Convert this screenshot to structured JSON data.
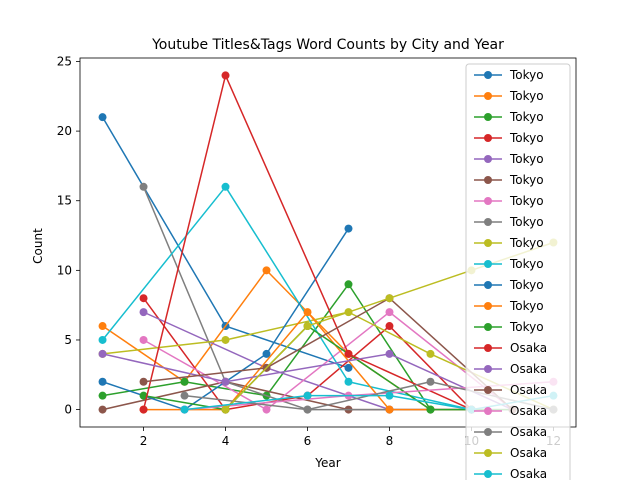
{
  "chart_data": {
    "type": "line",
    "title": "Youtube Titles&Tags Word Counts by City and Year",
    "xlabel": "Year",
    "ylabel": "Count",
    "xlim": [
      0.45,
      12.55
    ],
    "ylim": [
      -1.25,
      25.25
    ],
    "xticks": [
      2,
      4,
      6,
      8,
      10,
      12
    ],
    "yticks": [
      0,
      5,
      10,
      15,
      20,
      25
    ],
    "grid": false,
    "legend_position": "upper-right",
    "series": [
      {
        "name": "Tokyo",
        "color": "#1f77b4",
        "x": [
          1,
          4,
          7
        ],
        "y": [
          21,
          6,
          3
        ]
      },
      {
        "name": "Tokyo",
        "color": "#ff7f0e",
        "x": [
          1,
          3,
          5,
          7,
          9
        ],
        "y": [
          6,
          2,
          10,
          4,
          0
        ]
      },
      {
        "name": "Tokyo",
        "color": "#2ca02c",
        "x": [
          1,
          3,
          5,
          7,
          9
        ],
        "y": [
          1,
          2,
          1,
          9,
          0
        ]
      },
      {
        "name": "Tokyo",
        "color": "#d62728",
        "x": [
          2,
          4,
          6,
          8,
          10
        ],
        "y": [
          8,
          0,
          1,
          6,
          0
        ]
      },
      {
        "name": "Tokyo",
        "color": "#9467bd",
        "x": [
          2,
          5,
          8,
          11
        ],
        "y": [
          7,
          3,
          0,
          0
        ]
      },
      {
        "name": "Tokyo",
        "color": "#8c564b",
        "x": [
          1,
          4,
          7,
          10
        ],
        "y": [
          0,
          2,
          0,
          0
        ]
      },
      {
        "name": "Tokyo",
        "color": "#e377c2",
        "x": [
          2,
          5,
          8,
          11
        ],
        "y": [
          5,
          0,
          7,
          0
        ]
      },
      {
        "name": "Tokyo",
        "color": "#7f7f7f",
        "x": [
          2,
          4,
          6,
          8,
          10
        ],
        "y": [
          16,
          2,
          0,
          0,
          0
        ]
      },
      {
        "name": "Tokyo",
        "color": "#bcbd22",
        "x": [
          1,
          4,
          7,
          9,
          12
        ],
        "y": [
          4,
          5,
          7,
          4,
          0
        ]
      },
      {
        "name": "Tokyo",
        "color": "#17becf",
        "x": [
          1,
          4,
          7,
          10
        ],
        "y": [
          5,
          16,
          2,
          0
        ]
      },
      {
        "name": "Tokyo",
        "color": "#1f77b4",
        "x": [
          1,
          3,
          5,
          7
        ],
        "y": [
          2,
          0,
          4,
          13
        ]
      },
      {
        "name": "Tokyo",
        "color": "#ff7f0e",
        "x": [
          2,
          4,
          6,
          8,
          10
        ],
        "y": [
          0,
          0,
          7,
          0,
          0
        ]
      },
      {
        "name": "Tokyo",
        "color": "#2ca02c",
        "x": [
          2,
          4,
          6,
          9,
          11
        ],
        "y": [
          1,
          0,
          6,
          0,
          0
        ]
      },
      {
        "name": "Osaka",
        "color": "#d62728",
        "x": [
          2,
          4,
          7,
          10
        ],
        "y": [
          0,
          24,
          4,
          0
        ]
      },
      {
        "name": "Osaka",
        "color": "#9467bd",
        "x": [
          1,
          4,
          8,
          11
        ],
        "y": [
          4,
          2,
          4,
          0
        ]
      },
      {
        "name": "Osaka",
        "color": "#8c564b",
        "x": [
          2,
          5,
          8,
          11
        ],
        "y": [
          2,
          3,
          8,
          0
        ]
      },
      {
        "name": "Osaka",
        "color": "#e377c2",
        "x": [
          3,
          7,
          12
        ],
        "y": [
          0,
          1,
          2
        ]
      },
      {
        "name": "Osaka",
        "color": "#7f7f7f",
        "x": [
          3,
          6,
          9,
          12
        ],
        "y": [
          1,
          0,
          2,
          0
        ]
      },
      {
        "name": "Osaka",
        "color": "#bcbd22",
        "x": [
          4,
          6,
          8,
          10,
          12
        ],
        "y": [
          0,
          6,
          8,
          10,
          12
        ]
      },
      {
        "name": "Osaka",
        "color": "#17becf",
        "x": [
          3,
          6,
          8,
          10,
          12
        ],
        "y": [
          0,
          1,
          1,
          0,
          1
        ]
      }
    ]
  }
}
